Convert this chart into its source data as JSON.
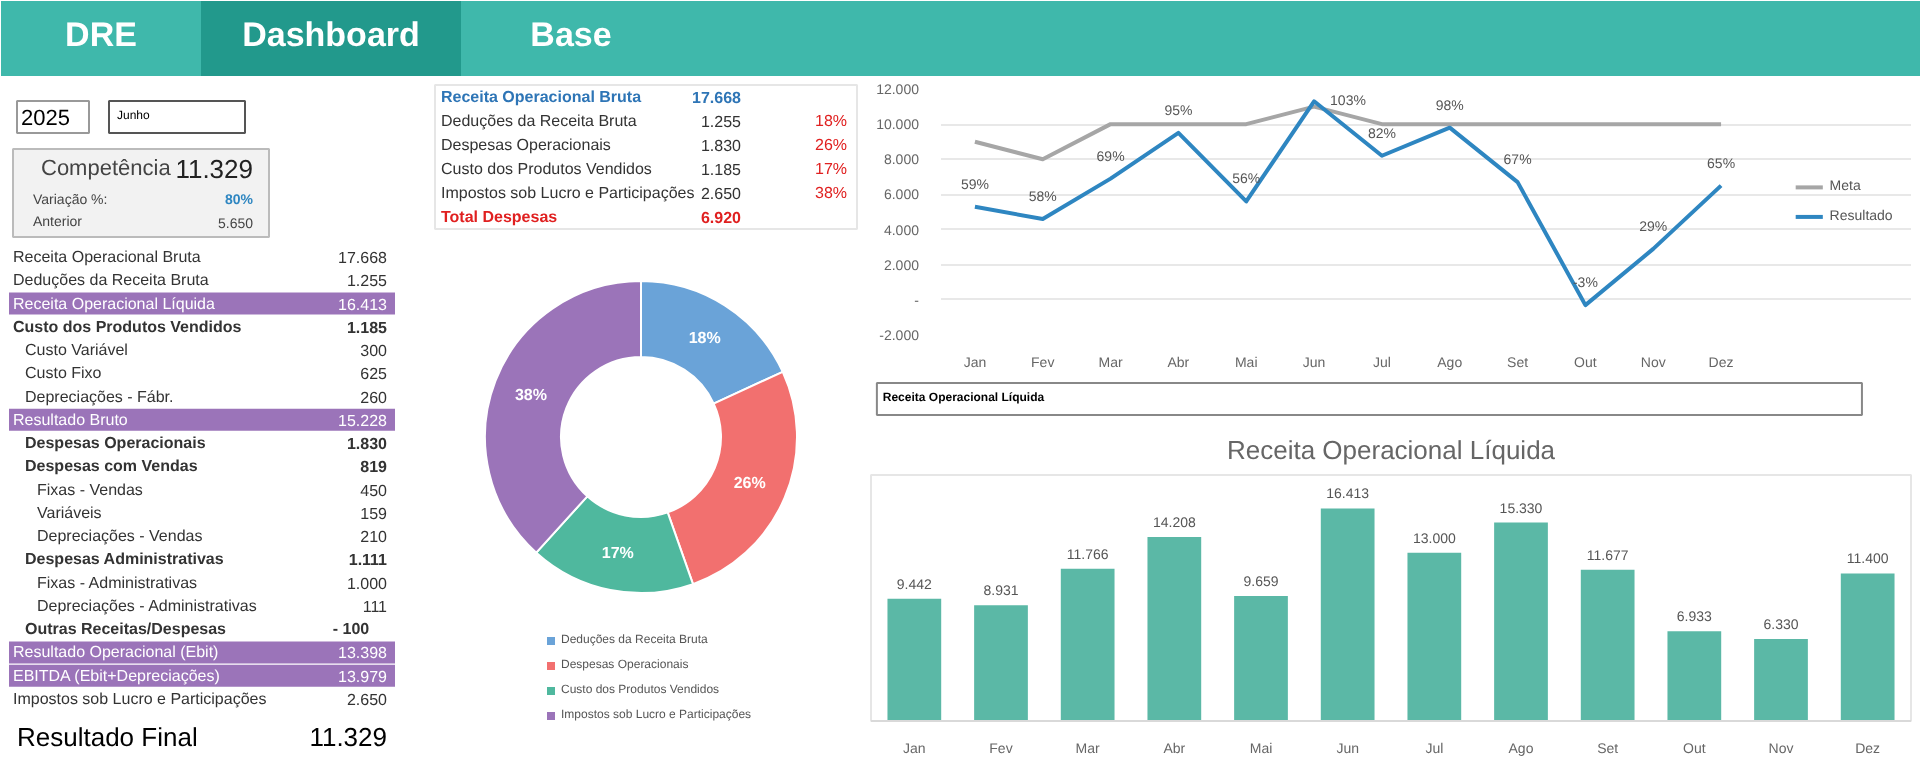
{
  "chart_data": [
    {
      "type": "other",
      "annotations": [
        "DRE",
        "Dashboard",
        "Base"
      ]
    },
    {
      "type": "other",
      "annotations": [
        "2025",
        "Junho",
        "Competência",
        "11.329",
        "Variação %:",
        "80%",
        "Anterior",
        "5.650",
        "Receita Operacional Bruta",
        "17.668",
        "Deduções da Receita Bruta",
        "1.255",
        "Receita Operacional Líquida",
        "16.413",
        "Custo dos Produtos Vendidos",
        "1.185",
        "Custo Variável",
        "300",
        "Custo Fixo",
        "625",
        "Depreciações - Fábr.",
        "260",
        "Resultado Bruto",
        "15.228",
        "Despesas Operacionais",
        "1.830",
        "Despesas com Vendas",
        "819",
        "Fixas - Vendas",
        "450",
        "Variáveis",
        "159",
        "Depreciações - Vendas",
        "210",
        "Despesas Administrativas",
        "1.111",
        "Fixas - Administrativas",
        "1.000",
        "Depreciações - Administrativas",
        "111",
        "Outras Receitas/Despesas",
        "-     100",
        "Resultado Operacional (Ebit)",
        "13.398",
        "EBITDA (Ebit+Depreciações)",
        "13.979",
        "Impostos sob Lucro e Participações",
        "2.650",
        "Resultado Final",
        "11.329"
      ]
    },
    {
      "type": "other",
      "annotations": [
        "Receita Operacional Bruta",
        "17.668",
        "Deduções da Receita Bruta",
        "1.255",
        "18%",
        "Despesas Operacionais",
        "1.830",
        "26%",
        "Custo dos Produtos Vendidos",
        "1.185",
        "17%",
        "Impostos sob Lucro e Participações",
        "2.650",
        "38%",
        "Total Despesas",
        "6.920"
      ]
    },
    {
      "type": "donut",
      "categories": [
        "Deduções da Receita Bruta",
        "Despesas Operacionais",
        "Custo dos Produtos Vendidos",
        "Impostos sob Lucro e Participações"
      ],
      "values": [
        18.14,
        26.45,
        17.12,
        38.29
      ],
      "colors": [
        "#6aa3d8",
        "#f2706f",
        "#4fb89e",
        "#9b74b9"
      ],
      "value_labels": [
        "18%",
        "26%",
        "17%",
        "38%"
      ],
      "legend": "bottom"
    },
    {
      "type": "line",
      "categories": [
        "Jan",
        "Fev",
        "Mar",
        "Abr",
        "Mai",
        "Jun",
        "Jul",
        "Ago",
        "Set",
        "Out",
        "Nov",
        "Dez"
      ],
      "series": [
        {
          "name": "Meta",
          "color": "#a6a6a6",
          "values": [
            9000,
            8000,
            10000,
            10000,
            10000,
            11000,
            10000,
            10000,
            10000,
            10000,
            10000,
            10000
          ]
        },
        {
          "name": "Resultado",
          "color": "#2e86c1",
          "values": [
            5300,
            4600,
            6900,
            9500,
            5600,
            11300,
            8200,
            9800,
            6700,
            -300,
            2900,
            6500
          ]
        }
      ],
      "annotations": [
        {
          "text": "59%",
          "x": "Jan",
          "y": 5300
        },
        {
          "text": "58%",
          "x": "Fev",
          "y": 4600
        },
        {
          "text": "69%",
          "x": "Mar",
          "y": 6900
        },
        {
          "text": "95%",
          "x": "Abr",
          "y": 9500
        },
        {
          "text": "56%",
          "x": "Mai",
          "y": 5600
        },
        {
          "text": "103%",
          "x": "Jun",
          "y": 11300
        },
        {
          "text": "82%",
          "x": "Jul",
          "y": 8200
        },
        {
          "text": "98%",
          "x": "Ago",
          "y": 9800
        },
        {
          "text": "67%",
          "x": "Set",
          "y": 6700
        },
        {
          "text": "-3%",
          "x": "Out",
          "y": -300
        },
        {
          "text": "29%",
          "x": "Nov",
          "y": 2900
        },
        {
          "text": "65%",
          "x": "Dez",
          "y": 6500
        }
      ],
      "ylim": [
        -2000,
        12000
      ],
      "yticks": [
        {
          "value": -2000,
          "label": "-2.000"
        },
        {
          "value": 0,
          "label": "-"
        },
        {
          "value": 2000,
          "label": "2.000"
        },
        {
          "value": 4000,
          "label": "4.000"
        },
        {
          "value": 6000,
          "label": "6.000"
        },
        {
          "value": 8000,
          "label": "8.000"
        },
        {
          "value": 10000,
          "label": "10.000"
        },
        {
          "value": 12000,
          "label": "12.000"
        }
      ],
      "grid": "y",
      "legend": "right"
    },
    {
      "type": "bar",
      "title": "Receita Operacional Líquida",
      "annotations": [
        "Receita Operacional Líquida"
      ],
      "categories": [
        "Jan",
        "Fev",
        "Mar",
        "Abr",
        "Mai",
        "Jun",
        "Jul",
        "Ago",
        "Set",
        "Out",
        "Nov",
        "Dez"
      ],
      "values": [
        9442,
        8931,
        11766,
        14208,
        9659,
        16413,
        13000,
        15330,
        11677,
        6933,
        6330,
        11400
      ],
      "color": "#5bb8a6",
      "value_labels": [
        "9.442",
        "8.931",
        "11.766",
        "14.208",
        "9.659",
        "16.413",
        "13.000",
        "15.330",
        "11.677",
        "6.933",
        "6.330",
        "11.400"
      ],
      "ylim": [
        0,
        19000
      ],
      "tick_labels": "x"
    }
  ]
}
